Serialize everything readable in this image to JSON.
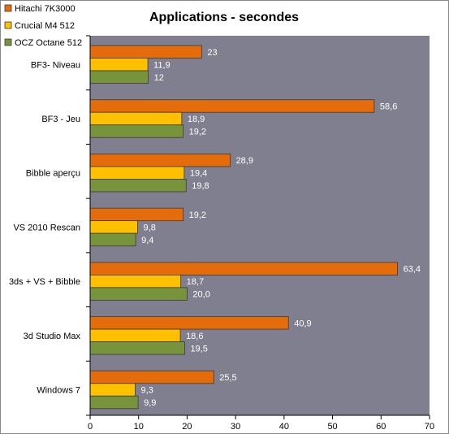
{
  "chart_data": {
    "type": "bar",
    "orientation": "horizontal",
    "title": "Applications  - secondes",
    "categories": [
      "BF3- Niveau",
      "BF3 - Jeu",
      "Bibble aperçu",
      "VS 2010 Rescan",
      "3ds + VS + Bibble",
      "3d Studio Max",
      "Windows 7"
    ],
    "series": [
      {
        "name": "Hitachi 7K3000",
        "color": "#E46C0A",
        "values": [
          23,
          58.6,
          28.9,
          19.2,
          63.4,
          40.9,
          25.5
        ],
        "labels": [
          "23",
          "58,6",
          "28,9",
          "19,2",
          "63,4",
          "40,9",
          "25,5"
        ]
      },
      {
        "name": "Crucial M4 512",
        "color": "#FFC000",
        "values": [
          11.9,
          18.9,
          19.4,
          9.8,
          18.7,
          18.6,
          9.3
        ],
        "labels": [
          "11,9",
          "18,9",
          "19,4",
          "9,8",
          "18,7",
          "18,6",
          "9,3"
        ]
      },
      {
        "name": "OCZ Octane 512",
        "color": "#77933C",
        "values": [
          12,
          19.2,
          19.8,
          9.4,
          20.0,
          19.5,
          9.9
        ],
        "labels": [
          "12",
          "19,2",
          "19,8",
          "9,4",
          "20,0",
          "19,5",
          "9,9"
        ]
      }
    ],
    "xlim": [
      0,
      70
    ],
    "xticks": [
      0,
      10,
      20,
      30,
      40,
      50,
      60,
      70
    ],
    "plot_background": "#7F7F8F",
    "data_label_color": "#FFFFFF",
    "grid": false,
    "legend": "top-left"
  }
}
